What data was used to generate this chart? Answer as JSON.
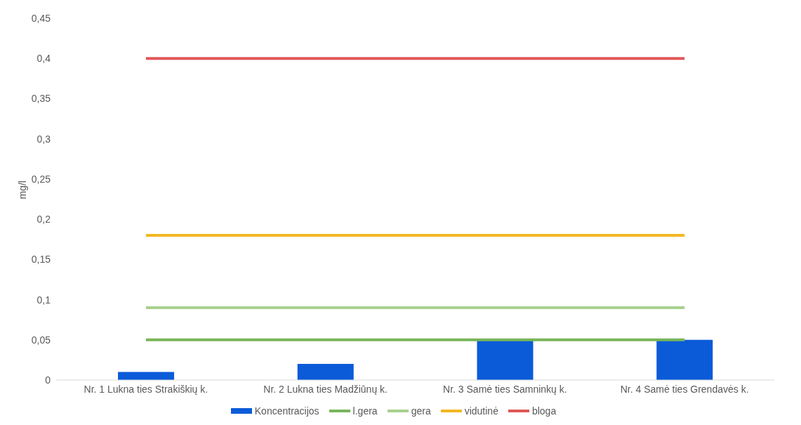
{
  "chart_data": {
    "type": "bar",
    "ylabel": "mg/l",
    "categories": [
      "Nr. 1 Lukna ties Strakiškių k.",
      "Nr. 2 Lukna ties Madžiūnų k.",
      "Nr. 3 Samė ties Samninkų k.",
      "Nr. 4 Samė ties Grendavės k."
    ],
    "series": [
      {
        "name": "Koncentracijos",
        "color": "#0b5bd9",
        "values": [
          0.01,
          0.02,
          0.05,
          0.05
        ]
      },
      {
        "name": "l.gera",
        "type": "line",
        "color": "#78b55a",
        "values": [
          0.05,
          0.05,
          0.05,
          0.05
        ]
      },
      {
        "name": "gera",
        "type": "line",
        "color": "#a9d18e",
        "values": [
          0.09,
          0.09,
          0.09,
          0.09
        ]
      },
      {
        "name": "vidutinė",
        "type": "line",
        "color": "#f2b822",
        "values": [
          0.18,
          0.18,
          0.18,
          0.18
        ]
      },
      {
        "name": "bloga",
        "type": "line",
        "color": "#e05757",
        "values": [
          0.4,
          0.4,
          0.4,
          0.4
        ]
      }
    ],
    "ylim": [
      0,
      0.45
    ],
    "yticks": [
      {
        "value": 0,
        "label": "0"
      },
      {
        "value": 0.05,
        "label": "0,05"
      },
      {
        "value": 0.1,
        "label": "0,1"
      },
      {
        "value": 0.15,
        "label": "0,15"
      },
      {
        "value": 0.2,
        "label": "0,2"
      },
      {
        "value": 0.25,
        "label": "0,25"
      },
      {
        "value": 0.3,
        "label": "0,3"
      },
      {
        "value": 0.35,
        "label": "0,35"
      },
      {
        "value": 0.4,
        "label": "0,4"
      },
      {
        "value": 0.45,
        "label": "0,45"
      }
    ],
    "legend": "bottom",
    "marker": "none",
    "grid": false
  }
}
